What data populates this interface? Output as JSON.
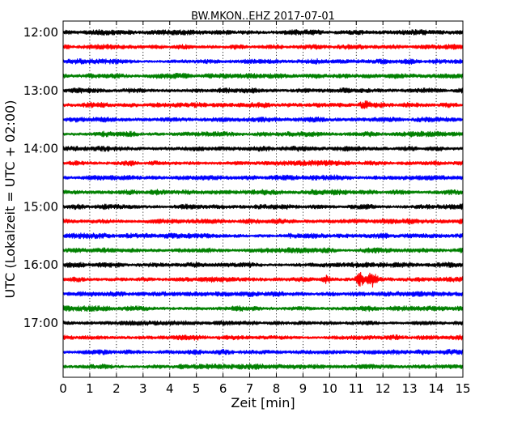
{
  "chart_data": {
    "type": "line",
    "title": "BW.MKON..EHZ 2017-07-01",
    "xlabel": "Zeit  [min]",
    "ylabel": "UTC (Lokalzeit = UTC + 02:00)",
    "xlim": [
      0,
      15
    ],
    "x_ticks": [
      "0",
      "1",
      "2",
      "3",
      "4",
      "5",
      "6",
      "7",
      "8",
      "9",
      "10",
      "11",
      "12",
      "13",
      "14",
      "15"
    ],
    "y_ticks": [
      "12:00",
      "13:00",
      "14:00",
      "15:00",
      "16:00",
      "17:00"
    ],
    "grid": "vertical dotted at each minute",
    "legend": "none",
    "color_cycle": [
      "#000000",
      "#ff0000",
      "#0000ff",
      "#008000"
    ],
    "traces": [
      {
        "start": "12:00",
        "color": "#000000"
      },
      {
        "start": "12:15",
        "color": "#ff0000"
      },
      {
        "start": "12:30",
        "color": "#0000ff"
      },
      {
        "start": "12:45",
        "color": "#008000"
      },
      {
        "start": "13:00",
        "color": "#000000"
      },
      {
        "start": "13:15",
        "color": "#ff0000"
      },
      {
        "start": "13:30",
        "color": "#0000ff"
      },
      {
        "start": "13:45",
        "color": "#008000"
      },
      {
        "start": "14:00",
        "color": "#000000"
      },
      {
        "start": "14:15",
        "color": "#ff0000"
      },
      {
        "start": "14:30",
        "color": "#0000ff"
      },
      {
        "start": "14:45",
        "color": "#008000"
      },
      {
        "start": "15:00",
        "color": "#000000"
      },
      {
        "start": "15:15",
        "color": "#ff0000"
      },
      {
        "start": "15:30",
        "color": "#0000ff"
      },
      {
        "start": "15:45",
        "color": "#008000"
      },
      {
        "start": "16:00",
        "color": "#000000"
      },
      {
        "start": "16:15",
        "color": "#ff0000"
      },
      {
        "start": "16:30",
        "color": "#0000ff"
      },
      {
        "start": "16:45",
        "color": "#008000"
      },
      {
        "start": "17:00",
        "color": "#000000"
      },
      {
        "start": "17:15",
        "color": "#ff0000"
      },
      {
        "start": "17:30",
        "color": "#0000ff"
      },
      {
        "start": "17:45",
        "color": "#008000"
      }
    ],
    "events": [
      {
        "trace": "16:15",
        "minute": 9.9,
        "description": "small burst"
      },
      {
        "trace": "16:15",
        "minute": 11.15,
        "description": "large burst"
      },
      {
        "trace": "16:15",
        "minute": 11.6,
        "description": "large burst"
      },
      {
        "trace": "13:15",
        "minute": 11.3,
        "description": "spike"
      }
    ]
  }
}
